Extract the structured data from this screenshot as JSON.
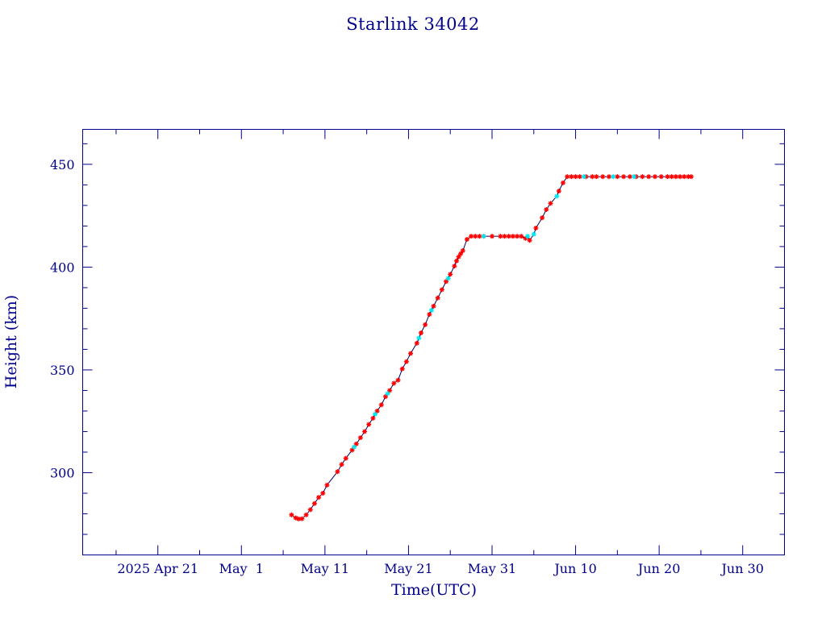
{
  "chart_data": {
    "type": "scatter",
    "title": "Starlink 34042",
    "xlabel": "Time(UTC)",
    "ylabel": "Height (km)",
    "x_type": "date",
    "xlim": [
      "2025-04-12",
      "2025-07-05"
    ],
    "ylim": [
      260,
      467
    ],
    "y_ticks": [
      300,
      350,
      400,
      450
    ],
    "y_tick_labels": [
      "300",
      "350",
      "400",
      "450"
    ],
    "x_tick_dates": [
      "2025-04-21",
      "2025-05-01",
      "2025-05-11",
      "2025-05-21",
      "2025-05-31",
      "2025-06-10",
      "2025-06-20",
      "2025-06-30"
    ],
    "x_tick_labels": [
      "2025 Apr 21",
      "May  1",
      "May 11",
      "May 21",
      "May 31",
      "Jun 10",
      "Jun 20",
      "Jun 30"
    ],
    "grid": false,
    "colors": {
      "frame": "#00008b",
      "text": "#00008b",
      "line": "#000060",
      "primary_marker": "#ff0000",
      "secondary_marker": "#00e5ee"
    },
    "series": [
      {
        "marker": "asterisk",
        "color": "#ff0000",
        "points": [
          [
            "2025-05-07T00:00",
            279.5
          ],
          [
            "2025-05-07T12:00",
            278.0
          ],
          [
            "2025-05-07T20:00",
            277.5
          ],
          [
            "2025-05-08T06:00",
            277.6
          ],
          [
            "2025-05-08T18:00",
            279.5
          ],
          [
            "2025-05-09T06:00",
            282.0
          ],
          [
            "2025-05-09T18:00",
            285.0
          ],
          [
            "2025-05-10T06:00",
            288.0
          ],
          [
            "2025-05-10T18:00",
            290.0
          ],
          [
            "2025-05-11T06:00",
            294.0
          ],
          [
            "2025-05-12T12:00",
            300.5
          ],
          [
            "2025-05-13T00:00",
            304.0
          ],
          [
            "2025-05-13T12:00",
            307.0
          ],
          [
            "2025-05-14T06:00",
            311.0
          ],
          [
            "2025-05-14T18:00",
            314.0
          ],
          [
            "2025-05-15T06:00",
            317.0
          ],
          [
            "2025-05-15T18:00",
            320.0
          ],
          [
            "2025-05-16T06:00",
            323.5
          ],
          [
            "2025-05-16T18:00",
            326.5
          ],
          [
            "2025-05-17T06:00",
            330.0
          ],
          [
            "2025-05-17T18:00",
            333.0
          ],
          [
            "2025-05-18T06:00",
            337.0
          ],
          [
            "2025-05-18T18:00",
            340.0
          ],
          [
            "2025-05-19T06:00",
            343.5
          ],
          [
            "2025-05-19T18:00",
            345.0
          ],
          [
            "2025-05-20T06:00",
            350.5
          ],
          [
            "2025-05-20T18:00",
            354.0
          ],
          [
            "2025-05-21T06:00",
            358.0
          ],
          [
            "2025-05-22T00:00",
            363.0
          ],
          [
            "2025-05-22T12:00",
            368.0
          ],
          [
            "2025-05-23T00:00",
            372.0
          ],
          [
            "2025-05-23T12:00",
            377.0
          ],
          [
            "2025-05-24T00:00",
            381.0
          ],
          [
            "2025-05-24T12:00",
            385.0
          ],
          [
            "2025-05-25T00:00",
            389.0
          ],
          [
            "2025-05-25T12:00",
            393.0
          ],
          [
            "2025-05-26T00:00",
            396.5
          ],
          [
            "2025-05-26T12:00",
            400.5
          ],
          [
            "2025-05-26T18:00",
            403.0
          ],
          [
            "2025-05-27T00:00",
            405.0
          ],
          [
            "2025-05-27T06:00",
            406.5
          ],
          [
            "2025-05-27T12:00",
            408.0
          ],
          [
            "2025-05-28T00:00",
            413.5
          ],
          [
            "2025-05-28T12:00",
            415.0
          ],
          [
            "2025-05-29T00:00",
            415.0
          ],
          [
            "2025-05-29T12:00",
            415.0
          ],
          [
            "2025-05-30T00:00",
            415.0
          ],
          [
            "2025-05-31T00:00",
            415.0
          ],
          [
            "2025-06-01T00:00",
            415.0
          ],
          [
            "2025-06-01T12:00",
            415.0
          ],
          [
            "2025-06-02T00:00",
            415.0
          ],
          [
            "2025-06-02T12:00",
            415.0
          ],
          [
            "2025-06-03T00:00",
            415.0
          ],
          [
            "2025-06-03T12:00",
            415.0
          ],
          [
            "2025-06-04T00:00",
            414.0
          ],
          [
            "2025-06-04T12:00",
            413.0
          ],
          [
            "2025-06-05T06:00",
            419.0
          ],
          [
            "2025-06-06T00:00",
            424.0
          ],
          [
            "2025-06-06T12:00",
            428.0
          ],
          [
            "2025-06-07T00:00",
            431.0
          ],
          [
            "2025-06-08T00:00",
            437.0
          ],
          [
            "2025-06-08T12:00",
            441.0
          ],
          [
            "2025-06-09T00:00",
            444.0
          ],
          [
            "2025-06-09T12:00",
            444.0
          ],
          [
            "2025-06-10T00:00",
            444.0
          ],
          [
            "2025-06-10T12:00",
            444.0
          ],
          [
            "2025-06-11T06:00",
            444.0
          ],
          [
            "2025-06-12T00:00",
            444.0
          ],
          [
            "2025-06-12T12:00",
            444.0
          ],
          [
            "2025-06-13T06:00",
            444.0
          ],
          [
            "2025-06-14T00:00",
            444.0
          ],
          [
            "2025-06-15T00:00",
            444.0
          ],
          [
            "2025-06-15T18:00",
            444.0
          ],
          [
            "2025-06-16T12:00",
            444.0
          ],
          [
            "2025-06-17T06:00",
            444.0
          ],
          [
            "2025-06-18T00:00",
            444.0
          ],
          [
            "2025-06-18T18:00",
            444.0
          ],
          [
            "2025-06-19T12:00",
            444.0
          ],
          [
            "2025-06-20T06:00",
            444.0
          ],
          [
            "2025-06-21T00:00",
            444.0
          ],
          [
            "2025-06-21T12:00",
            444.0
          ],
          [
            "2025-06-22T00:00",
            444.0
          ],
          [
            "2025-06-22T12:00",
            444.0
          ],
          [
            "2025-06-23T00:00",
            444.0
          ],
          [
            "2025-06-23T12:00",
            444.0
          ],
          [
            "2025-06-23T20:00",
            444.0
          ]
        ]
      },
      {
        "marker": "asterisk",
        "color": "#00e5ee",
        "points": [
          [
            "2025-05-14T12:00",
            312.5
          ],
          [
            "2025-05-17T00:00",
            328.5
          ],
          [
            "2025-05-18T12:00",
            338.5
          ],
          [
            "2025-05-22T06:00",
            365.5
          ],
          [
            "2025-05-23T18:00",
            379.0
          ],
          [
            "2025-05-25T18:00",
            394.5
          ],
          [
            "2025-05-30T00:00",
            415.0
          ],
          [
            "2025-06-04T06:00",
            415.0
          ],
          [
            "2025-06-05T00:00",
            416.0
          ],
          [
            "2025-06-07T18:00",
            434.5
          ],
          [
            "2025-06-11T00:00",
            444.0
          ],
          [
            "2025-06-14T12:00",
            444.0
          ],
          [
            "2025-06-17T00:00",
            444.0
          ]
        ]
      }
    ]
  }
}
